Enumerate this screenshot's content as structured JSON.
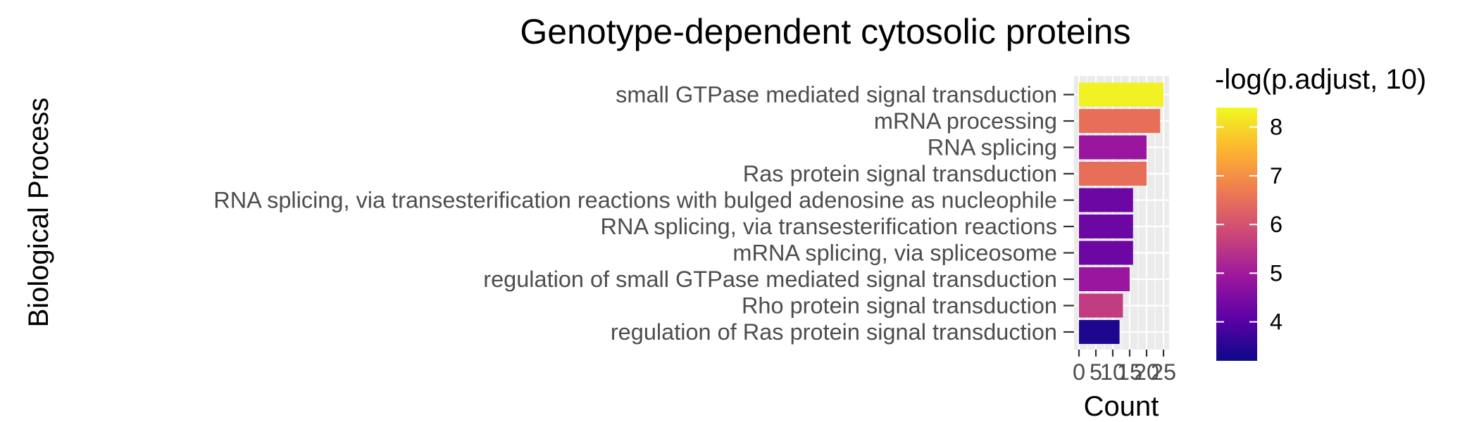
{
  "chart_data": {
    "type": "bar",
    "orientation": "horizontal",
    "title": "Genotype-dependent cytosolic proteins",
    "xlabel": "Count",
    "ylabel": "Biological Process",
    "xlim": [
      0,
      25
    ],
    "xticks": [
      "0",
      "5",
      "10",
      "15",
      "20",
      "25"
    ],
    "grid": true,
    "legend": {
      "title": "-log(p.adjust, 10)",
      "type": "colorbar",
      "placement": "right",
      "range": [
        3.2,
        8.4
      ],
      "ticks": [
        "4",
        "5",
        "6",
        "7",
        "8"
      ],
      "palette": [
        "#0d0887",
        "#5c01a6",
        "#9c179e",
        "#cc4778",
        "#ed7953",
        "#fdb42f",
        "#f0f921"
      ]
    },
    "categories": [
      "small GTPase mediated signal transduction",
      "mRNA processing",
      "RNA splicing",
      "Ras protein signal transduction",
      "RNA splicing, via transesterification reactions with bulged adenosine as nucleophile",
      "RNA splicing, via transesterification reactions",
      "mRNA splicing, via spliceosome",
      "regulation of small GTPase mediated signal transduction",
      "Rho protein signal transduction",
      "regulation of Ras protein signal transduction"
    ],
    "values": [
      25,
      24,
      20,
      20,
      16,
      16,
      16,
      15,
      13,
      12
    ],
    "color_values": [
      8.3,
      6.5,
      4.9,
      6.5,
      4.3,
      4.3,
      4.3,
      4.9,
      5.6,
      3.4
    ]
  }
}
